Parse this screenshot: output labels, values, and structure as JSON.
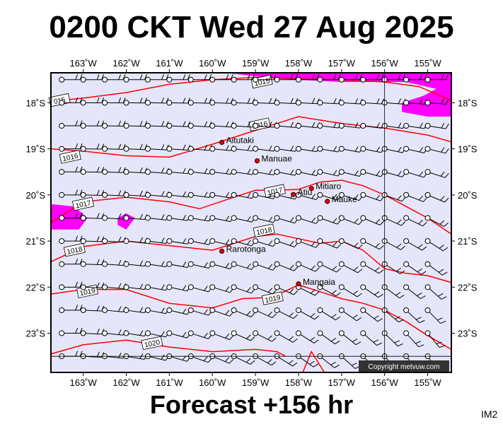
{
  "title": "0200 CKT Wed 27 Aug 2025",
  "footer": "Forecast +156 hr",
  "corner_label": "IM2",
  "copyright": "Copyright metvuw.com",
  "colors": {
    "ocean": "#e6e6fa",
    "isobar": "#ff0000",
    "high_wind": "#ff00ff",
    "place_dot": "#dd0000"
  },
  "map": {
    "lon_range": [
      -163.75,
      -154.45
    ],
    "lat_range": [
      -23.85,
      -17.35
    ],
    "lon_ticks": [
      {
        "lon": -163,
        "label": "163˚W"
      },
      {
        "lon": -162,
        "label": "162˚W"
      },
      {
        "lon": -161,
        "label": "161˚W"
      },
      {
        "lon": -160,
        "label": "160˚W"
      },
      {
        "lon": -159,
        "label": "159˚W"
      },
      {
        "lon": -158,
        "label": "158˚W"
      },
      {
        "lon": -157,
        "label": "157˚W"
      },
      {
        "lon": -156,
        "label": "156˚W"
      },
      {
        "lon": -155,
        "label": "155˚W"
      }
    ],
    "lat_ticks": [
      {
        "lat": -18,
        "label": "18˚S"
      },
      {
        "lat": -19,
        "label": "19˚S"
      },
      {
        "lat": -20,
        "label": "20˚S"
      },
      {
        "lat": -21,
        "label": "21˚S"
      },
      {
        "lat": -22,
        "label": "22˚S"
      },
      {
        "lat": -23,
        "label": "23˚S"
      }
    ],
    "places": [
      {
        "name": "Aitutaki",
        "lon": -159.78,
        "lat": -18.86
      },
      {
        "name": "Manuae",
        "lon": -158.96,
        "lat": -19.26
      },
      {
        "name": "Atiu",
        "lon": -158.12,
        "lat": -19.99
      },
      {
        "name": "Mitiaro",
        "lon": -157.7,
        "lat": -19.86
      },
      {
        "name": "Mauke",
        "lon": -157.33,
        "lat": -20.14
      },
      {
        "name": "Rarotonga",
        "lon": -159.78,
        "lat": -21.22
      },
      {
        "name": "Mangaia",
        "lon": -158.0,
        "lat": -21.93
      }
    ],
    "isobars": [
      {
        "value": 1015,
        "label": "1015",
        "label_at": [
          -158.85,
          -17.55
        ],
        "points": [
          [
            -163.75,
            -17.97
          ],
          [
            -163.0,
            -17.9
          ],
          [
            -162.0,
            -17.78
          ],
          [
            -161.0,
            -17.6
          ],
          [
            -160.0,
            -17.5
          ],
          [
            -159.0,
            -17.45
          ],
          [
            -158.0,
            -17.48
          ],
          [
            -157.0,
            -17.5
          ],
          [
            -156.0,
            -17.55
          ],
          [
            -155.2,
            -17.65
          ],
          [
            -154.45,
            -17.95
          ]
        ]
      },
      {
        "label": "015",
        "label_at": [
          -163.55,
          -17.95
        ],
        "points": []
      },
      {
        "value": 1016,
        "label": "1016",
        "label_at": [
          -158.9,
          -18.48
        ],
        "points": [
          [
            -163.75,
            -19.0
          ],
          [
            -163.0,
            -19.05
          ],
          [
            -162.0,
            -19.15
          ],
          [
            -161.0,
            -19.18
          ],
          [
            -160.0,
            -18.9
          ],
          [
            -159.0,
            -18.6
          ],
          [
            -158.0,
            -18.3
          ],
          [
            -157.0,
            -18.45
          ],
          [
            -156.0,
            -18.55
          ],
          [
            -155.0,
            -18.7
          ],
          [
            -154.45,
            -18.85
          ]
        ]
      },
      {
        "label": "1016",
        "label_at": [
          -163.3,
          -19.18
        ],
        "points": []
      },
      {
        "value": 1017,
        "label": "1017",
        "label_at": [
          -163.0,
          -20.2
        ],
        "points": [
          [
            -163.75,
            -20.6
          ],
          [
            -163.0,
            -20.15
          ],
          [
            -162.0,
            -20.05
          ],
          [
            -161.0,
            -20.15
          ],
          [
            -160.3,
            -20.3
          ],
          [
            -159.5,
            -20.05
          ],
          [
            -159.0,
            -19.9
          ],
          [
            -158.5,
            -19.9
          ],
          [
            -158.0,
            -19.88
          ],
          [
            -157.5,
            -19.72
          ],
          [
            -157.0,
            -19.68
          ],
          [
            -156.5,
            -19.8
          ],
          [
            -156.0,
            -20.0
          ],
          [
            -155.5,
            -20.25
          ],
          [
            -155.0,
            -20.5
          ],
          [
            -154.45,
            -20.85
          ]
        ]
      },
      {
        "label": "1017",
        "label_at": [
          -158.55,
          -19.92
        ],
        "points": []
      },
      {
        "value": 1018,
        "label": "1018",
        "label_at": [
          -158.8,
          -20.78
        ],
        "points": [
          [
            -163.75,
            -21.45
          ],
          [
            -163.0,
            -21.12
          ],
          [
            -162.0,
            -21.0
          ],
          [
            -161.0,
            -21.1
          ],
          [
            -160.0,
            -21.2
          ],
          [
            -159.5,
            -21.05
          ],
          [
            -159.0,
            -20.9
          ],
          [
            -158.5,
            -20.85
          ],
          [
            -158.0,
            -20.95
          ],
          [
            -157.5,
            -21.05
          ],
          [
            -157.0,
            -21.0
          ],
          [
            -156.5,
            -21.2
          ],
          [
            -156.0,
            -21.6
          ],
          [
            -155.5,
            -21.7
          ],
          [
            -155.0,
            -21.75
          ],
          [
            -154.45,
            -21.9
          ]
        ]
      },
      {
        "label": "1018",
        "label_at": [
          -163.2,
          -21.2
        ],
        "points": []
      },
      {
        "value": 1019,
        "label": "1019",
        "label_at": [
          -158.6,
          -22.25
        ],
        "points": [
          [
            -163.75,
            -22.15
          ],
          [
            -163.0,
            -22.05
          ],
          [
            -162.0,
            -22.05
          ],
          [
            -161.0,
            -22.35
          ],
          [
            -160.0,
            -22.45
          ],
          [
            -159.3,
            -22.25
          ],
          [
            -158.6,
            -22.22
          ],
          [
            -158.0,
            -21.95
          ],
          [
            -157.5,
            -22.1
          ],
          [
            -157.0,
            -22.25
          ],
          [
            -156.5,
            -22.35
          ],
          [
            -156.0,
            -22.5
          ],
          [
            -155.5,
            -22.75
          ],
          [
            -155.0,
            -23.05
          ],
          [
            -154.45,
            -23.35
          ]
        ]
      },
      {
        "label": "1019",
        "label_at": [
          -162.9,
          -22.1
        ],
        "points": []
      },
      {
        "value": 1020,
        "label": "1020",
        "label_at": [
          -161.4,
          -23.22
        ],
        "points": [
          [
            -163.75,
            -23.45
          ],
          [
            -163.0,
            -23.25
          ],
          [
            -162.0,
            -23.15
          ],
          [
            -161.0,
            -23.3
          ],
          [
            -160.0,
            -23.4
          ],
          [
            -159.0,
            -23.35
          ],
          [
            -158.5,
            -23.4
          ],
          [
            -158.3,
            -23.5
          ]
        ]
      },
      {
        "label": "",
        "label_at": [
          0,
          0
        ],
        "points": [
          [
            -157.9,
            -23.85
          ],
          [
            -157.7,
            -23.4
          ],
          [
            -157.4,
            -23.85
          ]
        ]
      }
    ],
    "high_wind_regions": [
      [
        [
          -159.7,
          -17.35
        ],
        [
          -154.45,
          -17.35
        ],
        [
          -154.45,
          -18.3
        ],
        [
          -155.0,
          -18.3
        ],
        [
          -155.6,
          -18.2
        ],
        [
          -155.6,
          -18.0
        ],
        [
          -155.1,
          -17.85
        ],
        [
          -154.8,
          -17.7
        ],
        [
          -155.5,
          -17.55
        ],
        [
          -157.0,
          -17.55
        ],
        [
          -158.5,
          -17.48
        ]
      ],
      [
        [
          -163.75,
          -20.2
        ],
        [
          -163.2,
          -20.25
        ],
        [
          -162.9,
          -20.5
        ],
        [
          -163.1,
          -20.75
        ],
        [
          -163.75,
          -20.75
        ]
      ],
      [
        [
          -162.2,
          -20.5
        ],
        [
          -162.0,
          -20.4
        ],
        [
          -161.8,
          -20.5
        ],
        [
          -162.0,
          -20.75
        ],
        [
          -162.2,
          -20.65
        ]
      ]
    ],
    "wind_grid": {
      "lon_start": -163.5,
      "lon_step": 0.5,
      "lon_count": 18,
      "lat_start": -17.5,
      "lat_step": -0.5,
      "lat_count": 13
    }
  }
}
